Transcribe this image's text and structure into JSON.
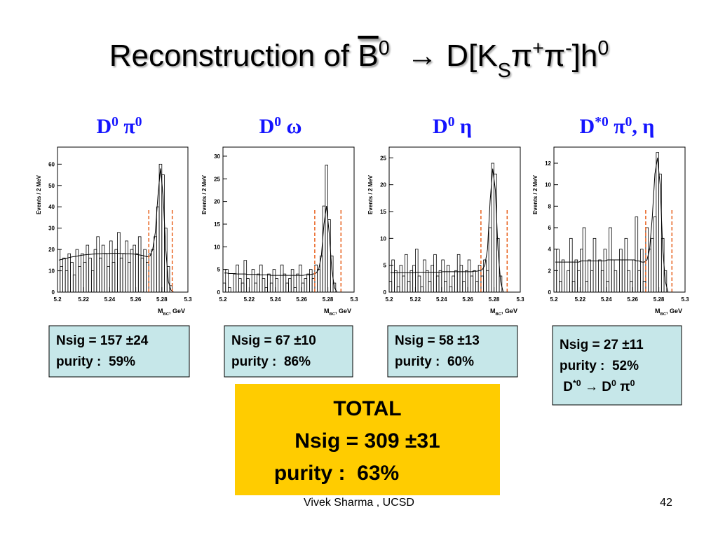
{
  "title": [
    {
      "t": "Reconstruction of "
    },
    {
      "t": "B",
      "style": "over"
    },
    {
      "t": "0",
      "style": "sup"
    },
    {
      "t": "  → D[K"
    },
    {
      "t": "S",
      "style": "sub"
    },
    {
      "t": "π"
    },
    {
      "t": "+",
      "style": "sup"
    },
    {
      "t": "π"
    },
    {
      "t": "-",
      "style": "sup"
    },
    {
      "t": "]h"
    },
    {
      "t": "0",
      "style": "sup"
    }
  ],
  "chart_data": [
    {
      "type": "histogram",
      "title": [
        {
          "t": "D"
        },
        {
          "t": "0",
          "style": "sup"
        },
        {
          "t": " π"
        },
        {
          "t": "0",
          "style": "sup"
        }
      ],
      "ylabel": "Events / 2 MeV",
      "xlabel": [
        {
          "t": "M"
        },
        {
          "t": "BC",
          "style": "sub"
        },
        {
          "t": ", GeV"
        }
      ],
      "xlim": [
        5.2,
        5.3
      ],
      "xticks": [
        5.2,
        5.22,
        5.24,
        5.26,
        5.28,
        5.3
      ],
      "ylim": [
        0,
        68
      ],
      "yticks": [
        0,
        10,
        20,
        30,
        40,
        50,
        60
      ],
      "color": "#000000",
      "region_color": "#e8601c",
      "signal_region": [
        5.27,
        5.288
      ],
      "bins": [
        5.2,
        5.202,
        5.204,
        5.206,
        5.208,
        5.21,
        5.212,
        5.214,
        5.216,
        5.218,
        5.22,
        5.222,
        5.224,
        5.226,
        5.228,
        5.23,
        5.232,
        5.234,
        5.236,
        5.238,
        5.24,
        5.242,
        5.244,
        5.246,
        5.248,
        5.25,
        5.252,
        5.254,
        5.256,
        5.258,
        5.26,
        5.262,
        5.264,
        5.266,
        5.268,
        5.27,
        5.272,
        5.274,
        5.276,
        5.278,
        5.28,
        5.282,
        5.284,
        5.286,
        5.288,
        5.29,
        5.292,
        5.294,
        5.296,
        5.298,
        5.3
      ],
      "counts": [
        20,
        12,
        16,
        10,
        18,
        14,
        8,
        20,
        12,
        18,
        14,
        22,
        16,
        10,
        20,
        26,
        16,
        22,
        18,
        12,
        24,
        14,
        20,
        28,
        16,
        18,
        24,
        14,
        20,
        22,
        18,
        26,
        16,
        20,
        14,
        18,
        20,
        26,
        40,
        60,
        55,
        30,
        12,
        3,
        0,
        0,
        0,
        0,
        0,
        0
      ],
      "fit": [
        15,
        15.3,
        15.6,
        15.9,
        16.2,
        16.5,
        16.7,
        16.9,
        17.1,
        17.3,
        17.5,
        17.6,
        17.7,
        17.8,
        17.9,
        18,
        18,
        18.1,
        18.1,
        18.1,
        18.2,
        18.2,
        18.2,
        18.2,
        18.1,
        18.1,
        18,
        18,
        17.9,
        17.8,
        17.6,
        17.4,
        17.2,
        16.9,
        16.6,
        17,
        20,
        28,
        45,
        58,
        45,
        20,
        5,
        1,
        0,
        0,
        0,
        0,
        0,
        0
      ]
    },
    {
      "type": "histogram",
      "title": [
        {
          "t": "D"
        },
        {
          "t": "0",
          "style": "sup"
        },
        {
          "t": " ω"
        }
      ],
      "ylabel": "Events / 2 MeV",
      "xlabel": [
        {
          "t": "M"
        },
        {
          "t": "BC",
          "style": "sub"
        },
        {
          "t": ", GeV"
        }
      ],
      "xlim": [
        5.2,
        5.3
      ],
      "xticks": [
        5.2,
        5.22,
        5.24,
        5.26,
        5.28,
        5.3
      ],
      "ylim": [
        0,
        32
      ],
      "yticks": [
        0,
        5,
        10,
        15,
        20,
        25,
        30
      ],
      "color": "#000000",
      "region_color": "#e8601c",
      "signal_region": [
        5.27,
        5.29
      ],
      "bins": [
        5.2,
        5.202,
        5.204,
        5.206,
        5.208,
        5.21,
        5.212,
        5.214,
        5.216,
        5.218,
        5.22,
        5.222,
        5.224,
        5.226,
        5.228,
        5.23,
        5.232,
        5.234,
        5.236,
        5.238,
        5.24,
        5.242,
        5.244,
        5.246,
        5.248,
        5.25,
        5.252,
        5.254,
        5.256,
        5.258,
        5.26,
        5.262,
        5.264,
        5.266,
        5.268,
        5.27,
        5.272,
        5.274,
        5.276,
        5.278,
        5.28,
        5.282,
        5.284,
        5.286,
        5.288,
        5.29,
        5.292,
        5.294,
        5.296,
        5.298,
        5.3
      ],
      "counts": [
        2,
        5,
        1,
        0,
        4,
        6,
        3,
        2,
        7,
        3,
        0,
        5,
        2,
        4,
        6,
        3,
        1,
        4,
        2,
        5,
        3,
        0,
        6,
        4,
        2,
        3,
        5,
        1,
        4,
        6,
        2,
        3,
        4,
        5,
        3,
        6,
        5,
        8,
        19,
        28,
        16,
        8,
        2,
        0,
        0,
        0,
        0,
        0,
        0,
        0
      ],
      "fit": [
        4.2,
        4.2,
        4.1,
        4.1,
        4.1,
        4,
        4,
        4,
        4,
        3.9,
        3.9,
        3.9,
        3.9,
        3.8,
        3.8,
        3.8,
        3.8,
        3.8,
        3.7,
        3.7,
        3.7,
        3.7,
        3.7,
        3.7,
        3.7,
        3.7,
        3.7,
        3.7,
        3.7,
        3.7,
        3.7,
        3.8,
        3.8,
        3.9,
        4,
        4.2,
        5,
        8,
        15,
        19,
        13,
        5,
        1,
        0,
        0,
        0,
        0,
        0,
        0,
        0
      ]
    },
    {
      "type": "histogram",
      "title": [
        {
          "t": "D"
        },
        {
          "t": "0",
          "style": "sup"
        },
        {
          "t": " η"
        }
      ],
      "ylabel": "Events / 2 MeV",
      "xlabel": [
        {
          "t": "M"
        },
        {
          "t": "BC",
          "style": "sub"
        },
        {
          "t": ", GeV"
        }
      ],
      "xlim": [
        5.2,
        5.3
      ],
      "xticks": [
        5.2,
        5.22,
        5.24,
        5.26,
        5.28,
        5.3
      ],
      "ylim": [
        0,
        27
      ],
      "yticks": [
        0,
        5,
        10,
        15,
        20,
        25
      ],
      "color": "#000000",
      "region_color": "#e8601c",
      "signal_region": [
        5.27,
        5.29
      ],
      "bins": [
        5.2,
        5.202,
        5.204,
        5.206,
        5.208,
        5.21,
        5.212,
        5.214,
        5.216,
        5.218,
        5.22,
        5.222,
        5.224,
        5.226,
        5.228,
        5.23,
        5.232,
        5.234,
        5.236,
        5.238,
        5.24,
        5.242,
        5.244,
        5.246,
        5.248,
        5.25,
        5.252,
        5.254,
        5.256,
        5.258,
        5.26,
        5.262,
        5.264,
        5.266,
        5.268,
        5.27,
        5.272,
        5.274,
        5.276,
        5.278,
        5.28,
        5.282,
        5.284,
        5.286,
        5.288,
        5.29,
        5.292,
        5.294,
        5.296,
        5.298,
        5.3
      ],
      "counts": [
        2,
        6,
        4,
        1,
        5,
        3,
        7,
        2,
        4,
        5,
        8,
        3,
        1,
        6,
        4,
        2,
        5,
        7,
        3,
        4,
        6,
        2,
        5,
        1,
        3,
        4,
        7,
        5,
        2,
        4,
        6,
        3,
        4,
        2,
        5,
        3,
        6,
        4,
        12,
        24,
        22,
        10,
        3,
        0,
        0,
        0,
        0,
        0,
        0,
        0
      ],
      "fit": [
        3.6,
        3.6,
        3.6,
        3.6,
        3.6,
        3.6,
        3.6,
        3.6,
        3.6,
        3.6,
        3.7,
        3.7,
        3.7,
        3.7,
        3.7,
        3.7,
        3.7,
        3.7,
        3.7,
        3.7,
        3.8,
        3.8,
        3.8,
        3.8,
        3.8,
        3.8,
        3.8,
        3.8,
        3.8,
        3.8,
        3.8,
        3.8,
        3.9,
        3.9,
        4,
        4.2,
        5,
        8,
        17,
        23,
        19,
        8,
        2,
        0,
        0,
        0,
        0,
        0,
        0,
        0
      ]
    },
    {
      "type": "histogram",
      "title": [
        {
          "t": "D"
        },
        {
          "t": "*0",
          "style": "sup"
        },
        {
          "t": " π"
        },
        {
          "t": "0",
          "style": "sup"
        },
        {
          "t": ", η"
        }
      ],
      "ylabel": "Events / 2 MeV",
      "xlabel": [
        {
          "t": "M"
        },
        {
          "t": "BC",
          "style": "sub"
        },
        {
          "t": ", GeV"
        }
      ],
      "xlim": [
        5.2,
        5.3
      ],
      "xticks": [
        5.2,
        5.22,
        5.24,
        5.26,
        5.28,
        5.3
      ],
      "ylim": [
        0,
        13.5
      ],
      "yticks": [
        0,
        2,
        4,
        6,
        8,
        10,
        12
      ],
      "color": "#000000",
      "region_color": "#e8601c",
      "signal_region": [
        5.27,
        5.29
      ],
      "bins": [
        5.2,
        5.202,
        5.204,
        5.206,
        5.208,
        5.21,
        5.212,
        5.214,
        5.216,
        5.218,
        5.22,
        5.222,
        5.224,
        5.226,
        5.228,
        5.23,
        5.232,
        5.234,
        5.236,
        5.238,
        5.24,
        5.242,
        5.244,
        5.246,
        5.248,
        5.25,
        5.252,
        5.254,
        5.256,
        5.258,
        5.26,
        5.262,
        5.264,
        5.266,
        5.268,
        5.27,
        5.272,
        5.274,
        5.276,
        5.278,
        5.28,
        5.282,
        5.284,
        5.286,
        5.288,
        5.29,
        5.292,
        5.294,
        5.296,
        5.298,
        5.3
      ],
      "counts": [
        2,
        4,
        1,
        3,
        0,
        2,
        5,
        1,
        3,
        2,
        4,
        6,
        1,
        3,
        2,
        5,
        0,
        3,
        2,
        4,
        1,
        6,
        3,
        2,
        0,
        4,
        3,
        5,
        2,
        1,
        3,
        7,
        2,
        4,
        1,
        6,
        4,
        5,
        7,
        13,
        11,
        5,
        2,
        0,
        0,
        0,
        0,
        0,
        0,
        0
      ],
      "fit": [
        2.8,
        2.8,
        2.8,
        2.8,
        2.8,
        2.8,
        2.8,
        2.8,
        2.8,
        2.8,
        2.9,
        2.9,
        2.9,
        2.9,
        2.9,
        2.9,
        2.9,
        2.9,
        2.9,
        2.9,
        3,
        3,
        3,
        3,
        3,
        3,
        3,
        3,
        3,
        3,
        3,
        2.9,
        2.9,
        2.8,
        2.8,
        3,
        4,
        7,
        11,
        12.5,
        10,
        4,
        1,
        0,
        0,
        0,
        0,
        0,
        0,
        0
      ]
    }
  ],
  "boxes": [
    [
      [
        {
          "t": "Nsig = 157 ±24"
        }
      ],
      [
        {
          "t": "purity :  59%"
        }
      ]
    ],
    [
      [
        {
          "t": "Nsig = 67 ±10"
        }
      ],
      [
        {
          "t": "purity :  86%"
        }
      ]
    ],
    [
      [
        {
          "t": "Nsig = 58 ±13"
        }
      ],
      [
        {
          "t": "purity :  60%"
        }
      ]
    ],
    [
      [
        {
          "t": "Nsig = 27 ±11"
        }
      ],
      [
        {
          "t": "purity :  52%"
        }
      ],
      [
        {
          "t": " D"
        },
        {
          "t": "*0",
          "style": "sup"
        },
        {
          "t": " → D"
        },
        {
          "t": "0",
          "style": "sup"
        },
        {
          "t": " π"
        },
        {
          "t": "0",
          "style": "sup"
        }
      ]
    ]
  ],
  "total": [
    "TOTAL",
    "Nsig = 309 ±31",
    "purity :  63%"
  ],
  "footer": {
    "author": "Vivek Sharma , UCSD",
    "page": "42"
  }
}
